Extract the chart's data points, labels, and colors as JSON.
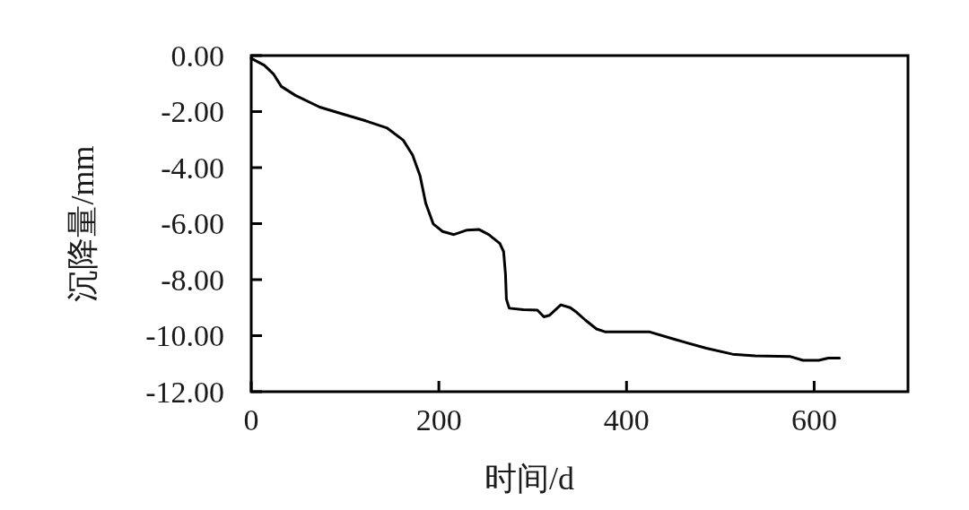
{
  "chart_data": {
    "type": "line",
    "xlabel": "时间/d",
    "ylabel": "沉降量/mm",
    "x": [
      0,
      14,
      24,
      32,
      47,
      73,
      100,
      122,
      145,
      162,
      172,
      180,
      186,
      194,
      204,
      216,
      230,
      243,
      253,
      265,
      269,
      271,
      272,
      275,
      290,
      305,
      312,
      318,
      330,
      340,
      347,
      356,
      368,
      377,
      424,
      451,
      485,
      513,
      537,
      574,
      588,
      605,
      615,
      627
    ],
    "values": [
      -0.1,
      -0.35,
      -0.67,
      -1.1,
      -1.42,
      -1.84,
      -2.11,
      -2.33,
      -2.59,
      -3.02,
      -3.55,
      -4.3,
      -5.27,
      -6.01,
      -6.28,
      -6.39,
      -6.23,
      -6.21,
      -6.39,
      -6.71,
      -7.0,
      -7.8,
      -8.7,
      -9.02,
      -9.07,
      -9.09,
      -9.33,
      -9.27,
      -8.9,
      -9.0,
      -9.17,
      -9.44,
      -9.76,
      -9.86,
      -9.86,
      -10.13,
      -10.45,
      -10.66,
      -10.72,
      -10.74,
      -10.88,
      -10.88,
      -10.8,
      -10.8
    ],
    "color": "#000000",
    "xlim": [
      0,
      700
    ],
    "ylim": [
      -12,
      0
    ],
    "xticks": [
      0,
      200,
      400,
      600
    ],
    "yticks": [
      {
        "value": 0,
        "label": "0.00"
      },
      {
        "value": -2,
        "label": "-2.00"
      },
      {
        "value": -4,
        "label": "-4.00"
      },
      {
        "value": -6,
        "label": "-6.00"
      },
      {
        "value": -8,
        "label": "-8.00"
      },
      {
        "value": -10,
        "label": "-10.00"
      },
      {
        "value": -12,
        "label": "-12.00"
      }
    ]
  }
}
